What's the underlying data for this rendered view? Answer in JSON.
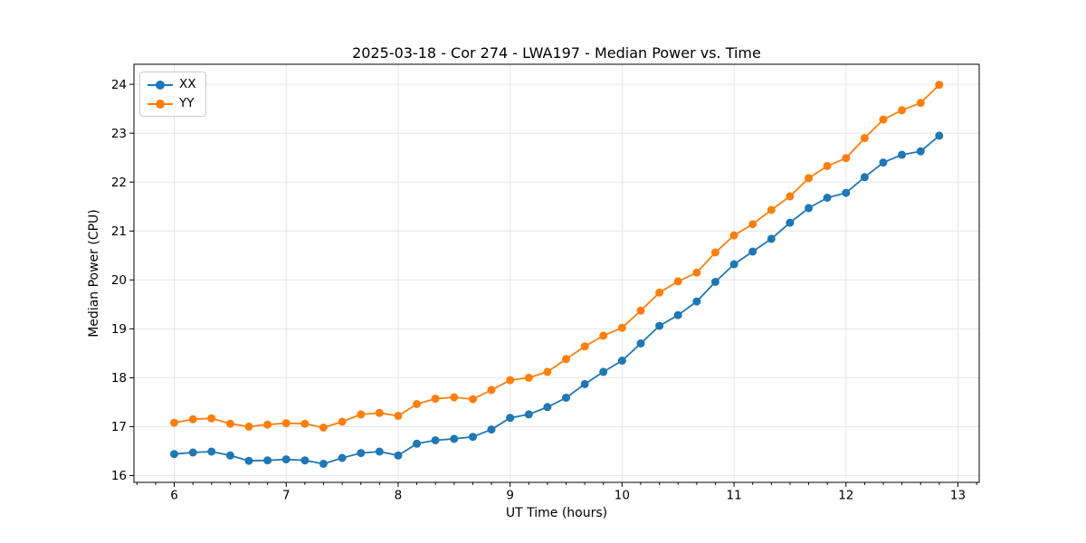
{
  "figure": {
    "background": "#ffffff"
  },
  "chart_data": {
    "type": "line",
    "title": "2025-03-18 - Cor 274 - LWA197 - Median Power vs. Time",
    "xlabel": "UT Time (hours)",
    "ylabel": "Median Power (CPU)",
    "xlim": [
      5.64,
      13.19
    ],
    "ylim": [
      15.86,
      24.41
    ],
    "x_ticks": [
      6,
      7,
      8,
      9,
      10,
      11,
      12,
      13
    ],
    "y_ticks": [
      16,
      17,
      18,
      19,
      20,
      21,
      22,
      23,
      24
    ],
    "x_minor_step": 0.16667,
    "grid": true,
    "grid_color": "#e6e6e6",
    "spine_color": "#000000",
    "legend_position": "upper-left",
    "x": [
      6.0,
      6.167,
      6.333,
      6.5,
      6.667,
      6.833,
      7.0,
      7.167,
      7.333,
      7.5,
      7.667,
      7.833,
      8.0,
      8.167,
      8.333,
      8.5,
      8.667,
      8.833,
      9.0,
      9.167,
      9.333,
      9.5,
      9.667,
      9.833,
      10.0,
      10.167,
      10.333,
      10.5,
      10.667,
      10.833,
      11.0,
      11.167,
      11.333,
      11.5,
      11.667,
      11.833,
      12.0,
      12.167,
      12.333,
      12.5,
      12.667,
      12.833
    ],
    "series": [
      {
        "name": "XX",
        "color": "#1f77b4",
        "values": [
          16.44,
          16.47,
          16.49,
          16.41,
          16.3,
          16.31,
          16.33,
          16.31,
          16.24,
          16.36,
          16.46,
          16.49,
          16.41,
          16.65,
          16.72,
          16.75,
          16.79,
          16.94,
          17.18,
          17.25,
          17.4,
          17.59,
          17.87,
          18.12,
          18.35,
          18.7,
          19.06,
          19.28,
          19.56,
          19.96,
          20.32,
          20.58,
          20.84,
          21.17,
          21.47,
          21.68,
          21.78,
          22.1,
          22.4,
          22.56,
          22.63,
          22.95
        ]
      },
      {
        "name": "YY",
        "color": "#ff7f0e",
        "values": [
          17.08,
          17.15,
          17.17,
          17.06,
          17.0,
          17.04,
          17.07,
          17.06,
          16.98,
          17.1,
          17.25,
          17.28,
          17.22,
          17.46,
          17.57,
          17.6,
          17.56,
          17.75,
          17.95,
          18.0,
          18.12,
          18.38,
          18.64,
          18.86,
          19.02,
          19.37,
          19.74,
          19.97,
          20.15,
          20.56,
          20.91,
          21.14,
          21.43,
          21.71,
          22.08,
          22.33,
          22.49,
          22.9,
          23.28,
          23.47,
          23.62,
          23.99
        ]
      }
    ]
  }
}
